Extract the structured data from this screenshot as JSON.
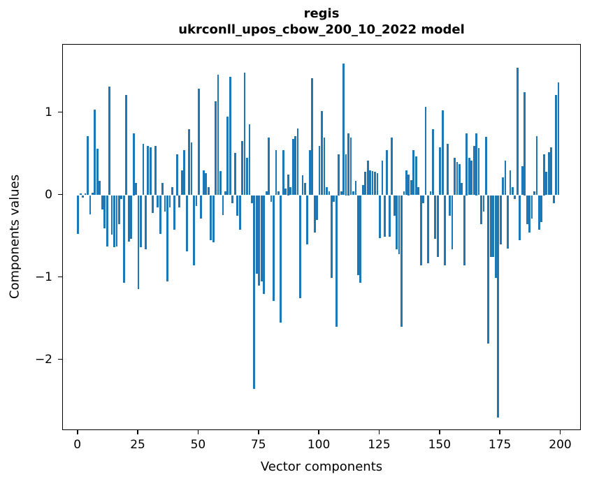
{
  "figure": {
    "title_line1": "regis",
    "title_line2": "ukrconll_upos_cbow_200_10_2022 model"
  },
  "chart_data": {
    "type": "bar",
    "title": "regis\nukrconll_upos_cbow_200_10_2022 model",
    "xlabel": "Vector components",
    "ylabel": "Components values",
    "bar_color": "#1f77b4",
    "background_color": "#ffffff",
    "spine_color": "#000000",
    "grid": false,
    "legend": null,
    "xlim": [
      -6.3,
      208.8
    ],
    "ylim": [
      -2.86,
      1.83
    ],
    "x_ticks": [
      0,
      25,
      50,
      75,
      100,
      125,
      150,
      175,
      200
    ],
    "x_tick_labels": [
      "0",
      "25",
      "50",
      "75",
      "100",
      "125",
      "150",
      "175",
      "200"
    ],
    "y_ticks": [
      1,
      0,
      -1,
      -2
    ],
    "y_tick_labels": [
      "1",
      "0",
      "−1",
      "−2"
    ],
    "n_bars": 200,
    "values": [
      -0.47,
      0.02,
      -0.03,
      0.02,
      0.72,
      -0.23,
      0.03,
      1.04,
      0.56,
      0.17,
      -0.17,
      -0.4,
      -0.62,
      1.32,
      -0.48,
      -0.63,
      -0.62,
      -0.35,
      -0.05,
      -1.06,
      1.22,
      -0.56,
      -0.53,
      0.75,
      0.15,
      -1.14,
      -0.63,
      0.62,
      -0.66,
      0.6,
      0.58,
      -0.22,
      0.6,
      -0.15,
      -0.47,
      0.15,
      -0.2,
      -1.05,
      -0.15,
      0.1,
      -0.42,
      0.5,
      -0.15,
      0.3,
      0.55,
      -0.68,
      0.8,
      0.64,
      -0.85,
      -0.13,
      1.29,
      -0.28,
      0.3,
      0.27,
      0.1,
      -0.55,
      -0.57,
      1.14,
      1.46,
      0.29,
      -0.24,
      0.05,
      0.95,
      1.44,
      -0.1,
      0.51,
      -0.25,
      -0.42,
      0.66,
      1.49,
      0.45,
      0.86,
      -0.1,
      -2.35,
      -0.95,
      -1.1,
      -1.05,
      -1.2,
      0.05,
      0.7,
      -0.08,
      -1.28,
      0.55,
      0.05,
      -1.55,
      0.55,
      0.08,
      0.25,
      0.1,
      0.68,
      0.72,
      0.81,
      -1.25,
      0.24,
      0.15,
      -0.6,
      0.55,
      1.42,
      -0.45,
      -0.3,
      0.6,
      1.02,
      0.7,
      0.1,
      0.05,
      -1.0,
      -0.08,
      -1.6,
      0.5,
      0.05,
      1.6,
      0.5,
      0.75,
      0.7,
      0.05,
      0.17,
      -0.97,
      -1.06,
      0.12,
      0.28,
      0.42,
      0.3,
      0.29,
      0.28,
      0.27,
      -0.52,
      0.42,
      -0.5,
      0.55,
      -0.5,
      0.7,
      -0.25,
      -0.66,
      -0.72,
      -1.6,
      0.05,
      0.3,
      0.25,
      0.18,
      0.55,
      0.47,
      0.1,
      -0.85,
      -0.1,
      1.07,
      -0.83,
      0.05,
      0.8,
      -0.53,
      -0.75,
      0.58,
      1.03,
      -0.85,
      0.62,
      -0.25,
      -0.66,
      0.45,
      0.4,
      0.38,
      0.15,
      -0.85,
      0.75,
      0.45,
      0.42,
      0.6,
      0.75,
      0.57,
      -0.35,
      -0.2,
      0.71,
      -1.8,
      -0.75,
      -0.75,
      -1.0,
      -2.7,
      -0.6,
      0.22,
      0.42,
      -0.65,
      0.3,
      0.1,
      -0.05,
      1.55,
      -0.55,
      0.35,
      1.25,
      -0.35,
      -0.45,
      -0.28,
      0.05,
      0.72,
      -0.42,
      -0.33,
      0.5,
      0.28,
      0.52,
      0.58,
      -0.1,
      1.22,
      1.37
    ]
  }
}
